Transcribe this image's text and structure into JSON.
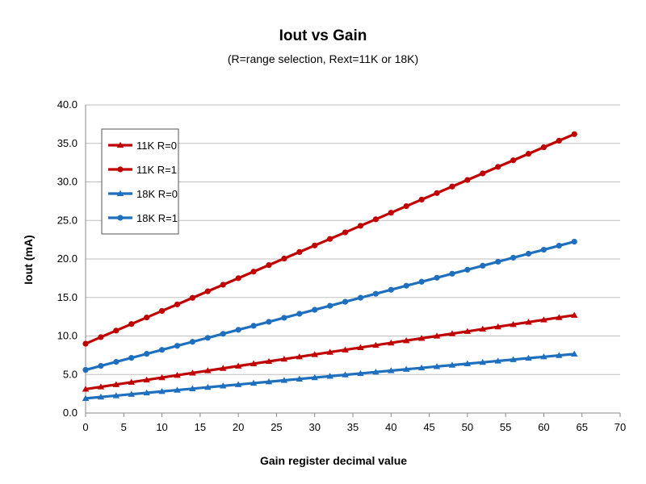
{
  "chart_data": {
    "type": "line",
    "title": "Iout vs Gain",
    "subtitle": "(R=range selection, Rext=11K or 18K)",
    "xlabel": "Gain register decimal value",
    "ylabel": "Iout (mA)",
    "xlim": [
      0,
      70
    ],
    "ylim": [
      0,
      40
    ],
    "x_ticks": [
      "0",
      "5",
      "10",
      "15",
      "20",
      "25",
      "30",
      "35",
      "40",
      "45",
      "50",
      "55",
      "60",
      "65",
      "70"
    ],
    "y_ticks": [
      "0.0",
      "5.0",
      "10.0",
      "15.0",
      "20.0",
      "25.0",
      "30.0",
      "35.0",
      "40.0"
    ],
    "grid": "horizontal",
    "legend_position": "top-left",
    "x": [
      0,
      2,
      4,
      6,
      8,
      10,
      12,
      14,
      16,
      18,
      20,
      22,
      24,
      26,
      28,
      30,
      32,
      34,
      36,
      38,
      40,
      42,
      44,
      46,
      48,
      50,
      52,
      54,
      56,
      58,
      60,
      62,
      64
    ],
    "series": [
      {
        "name": "11K R=0",
        "color": "#c00000",
        "marker": "triangle",
        "values": [
          3.1,
          3.4,
          3.7,
          4.0,
          4.3,
          4.6,
          4.9,
          5.2,
          5.5,
          5.8,
          6.1,
          6.4,
          6.7,
          7.0,
          7.3,
          7.6,
          7.9,
          8.2,
          8.5,
          8.8,
          9.1,
          9.4,
          9.7,
          10.0,
          10.3,
          10.6,
          10.9,
          11.2,
          11.5,
          11.8,
          12.1,
          12.4,
          12.7
        ]
      },
      {
        "name": "11K R=1",
        "color": "#c00000",
        "marker": "circle",
        "values": [
          9.0,
          9.85,
          10.7,
          11.55,
          12.4,
          13.25,
          14.1,
          14.95,
          15.8,
          16.65,
          17.5,
          18.35,
          19.2,
          20.05,
          20.9,
          21.75,
          22.6,
          23.45,
          24.3,
          25.15,
          26.0,
          26.85,
          27.7,
          28.55,
          29.4,
          30.25,
          31.1,
          31.95,
          32.8,
          33.65,
          34.5,
          35.35,
          36.2
        ]
      },
      {
        "name": "18K R=0",
        "color": "#1f6fbf",
        "marker": "triangle",
        "values": [
          1.9,
          2.08,
          2.26,
          2.44,
          2.62,
          2.8,
          2.98,
          3.16,
          3.34,
          3.52,
          3.7,
          3.88,
          4.06,
          4.24,
          4.42,
          4.6,
          4.78,
          4.96,
          5.14,
          5.32,
          5.5,
          5.68,
          5.86,
          6.04,
          6.22,
          6.4,
          6.58,
          6.76,
          6.94,
          7.12,
          7.3,
          7.48,
          7.66
        ]
      },
      {
        "name": "18K R=1",
        "color": "#1f6fbf",
        "marker": "circle",
        "values": [
          5.6,
          6.12,
          6.64,
          7.16,
          7.68,
          8.2,
          8.72,
          9.24,
          9.76,
          10.28,
          10.8,
          11.32,
          11.84,
          12.36,
          12.88,
          13.4,
          13.92,
          14.44,
          14.96,
          15.48,
          16.0,
          16.52,
          17.04,
          17.56,
          18.08,
          18.6,
          19.12,
          19.64,
          20.16,
          20.68,
          21.2,
          21.72,
          22.24
        ]
      }
    ]
  }
}
